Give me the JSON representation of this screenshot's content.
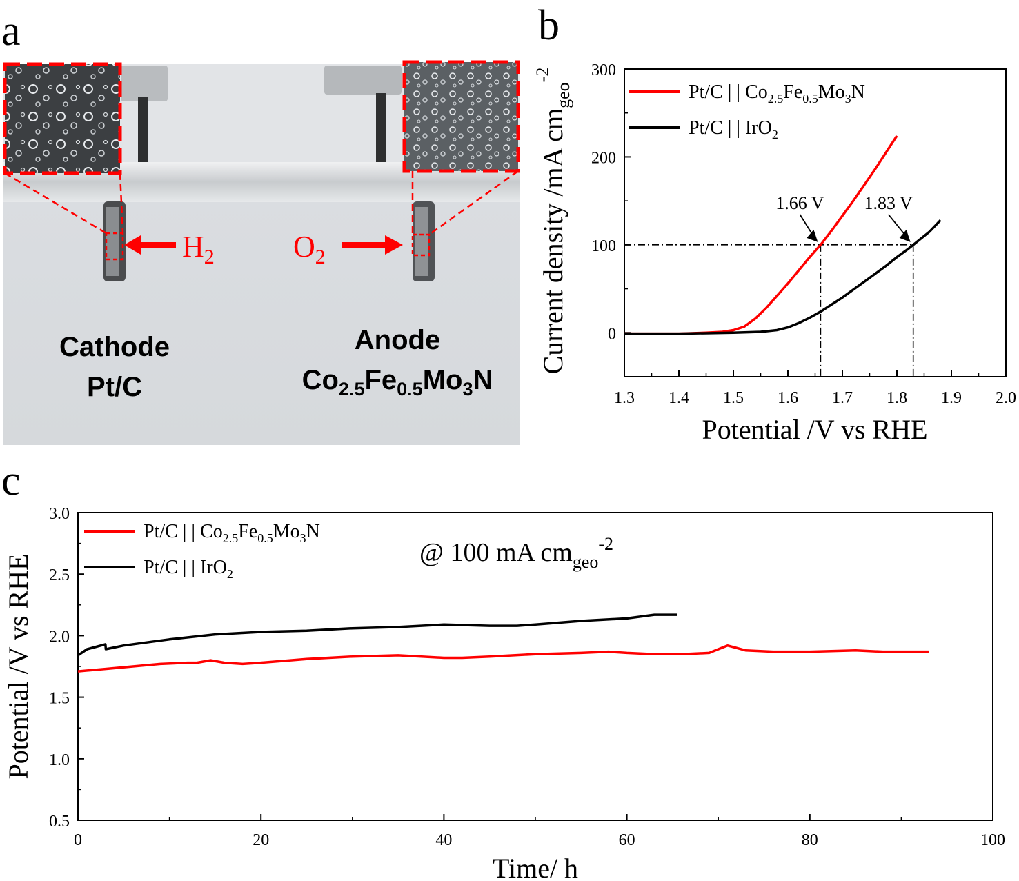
{
  "panels": {
    "a": "a",
    "b": "b",
    "c": "c"
  },
  "photo": {
    "h2_label": "H",
    "h2_sub": "2",
    "o2_label": "O",
    "o2_sub": "2",
    "cathode_title": "Cathode",
    "cathode_material": "Pt/C",
    "anode_title": "Anode",
    "anode_material": {
      "co": "Co",
      "co_sub": "2.5",
      "fe": "Fe",
      "fe_sub": "0.5",
      "mo": "Mo",
      "mo_sub": "3",
      "n": "N"
    },
    "colors": {
      "label": "#ff0000",
      "frame": "#ff0000"
    }
  },
  "chart_data": [
    {
      "id": "b",
      "type": "line",
      "xlabel": "Potential /V vs RHE",
      "ylabel": {
        "main": "Current density /mA cm",
        "sub": "geo",
        "sup": "-2"
      },
      "xlim": [
        1.3,
        2.0
      ],
      "ylim": [
        -50,
        300
      ],
      "xticks": [
        "1.3",
        "1.4",
        "1.5",
        "1.6",
        "1.7",
        "1.8",
        "1.9",
        "2.0"
      ],
      "yticks": [
        "0",
        "100",
        "200",
        "300"
      ],
      "legend": "top-left",
      "series": [
        {
          "name": "Pt/C||Co2.5Fe0.5Mo3N",
          "label": {
            "pre": "Pt/C | | Co",
            "s1": "2.5",
            "m1": "Fe",
            "s2": "0.5",
            "m2": "Mo",
            "s3": "3",
            "post": "N"
          },
          "color": "#ff0000",
          "x": [
            1.3,
            1.4,
            1.45,
            1.48,
            1.5,
            1.52,
            1.54,
            1.56,
            1.58,
            1.6,
            1.62,
            1.64,
            1.66,
            1.68,
            1.7,
            1.72,
            1.74,
            1.76,
            1.78,
            1.8
          ],
          "y": [
            -1,
            -1,
            0,
            1,
            3,
            7,
            16,
            28,
            42,
            56,
            71,
            86,
            100,
            116,
            133,
            150,
            168,
            186,
            205,
            224
          ]
        },
        {
          "name": "Pt/C||IrO2",
          "label": {
            "pre": "Pt/C | | IrO",
            "s1": "2"
          },
          "color": "#000000",
          "x": [
            1.3,
            1.4,
            1.5,
            1.55,
            1.58,
            1.6,
            1.62,
            1.64,
            1.66,
            1.68,
            1.7,
            1.72,
            1.74,
            1.76,
            1.78,
            1.8,
            1.82,
            1.83,
            1.86,
            1.88
          ],
          "y": [
            -1,
            -1,
            0,
            1,
            3,
            6,
            11,
            17,
            24,
            32,
            40,
            49,
            58,
            67,
            76,
            86,
            95,
            100,
            115,
            128
          ]
        }
      ],
      "annotations": [
        {
          "text": "1.66 V",
          "x": 1.66,
          "y": 100
        },
        {
          "text": "1.83 V",
          "x": 1.83,
          "y": 100
        }
      ],
      "reference_y": 100
    },
    {
      "id": "c",
      "type": "line",
      "xlabel": "Time/ h",
      "ylabel": "Potential /V vs RHE",
      "xlim": [
        0,
        100
      ],
      "ylim": [
        0.5,
        3.0
      ],
      "xticks": [
        "0",
        "20",
        "40",
        "60",
        "80",
        "100"
      ],
      "yticks": [
        "0.5",
        "1.0",
        "1.5",
        "2.0",
        "2.5",
        "3.0"
      ],
      "legend": "top-left",
      "annotation": {
        "pre": "@ 100 mA cm",
        "sub": "geo",
        "sup": "-2"
      },
      "series": [
        {
          "name": "Pt/C||Co2.5Fe0.5Mo3N",
          "label": {
            "pre": "Pt/C | | Co",
            "s1": "2.5",
            "m1": "Fe",
            "s2": "0.5",
            "m2": "Mo",
            "s3": "3",
            "post": "N"
          },
          "color": "#ff0000",
          "x": [
            0,
            3,
            6,
            9,
            12,
            13,
            14.5,
            16,
            18,
            20,
            25,
            30,
            35,
            40,
            42,
            45,
            50,
            55,
            58,
            60,
            63,
            66,
            69,
            70,
            71,
            72,
            73,
            76,
            80,
            85,
            88,
            90,
            93
          ],
          "y": [
            1.71,
            1.73,
            1.75,
            1.77,
            1.78,
            1.78,
            1.8,
            1.78,
            1.77,
            1.78,
            1.81,
            1.83,
            1.84,
            1.82,
            1.82,
            1.83,
            1.85,
            1.86,
            1.87,
            1.86,
            1.85,
            1.85,
            1.86,
            1.89,
            1.92,
            1.9,
            1.88,
            1.87,
            1.87,
            1.88,
            1.87,
            1.87,
            1.87
          ]
        },
        {
          "name": "Pt/C||IrO2",
          "label": {
            "pre": "Pt/C | | IrO",
            "s1": "2"
          },
          "color": "#000000",
          "x": [
            0,
            1,
            2,
            3,
            3.05,
            5,
            8,
            10,
            15,
            20,
            25,
            30,
            35,
            40,
            45,
            48,
            50,
            55,
            60,
            62,
            63,
            65.5
          ],
          "y": [
            1.84,
            1.89,
            1.91,
            1.93,
            1.89,
            1.92,
            1.95,
            1.97,
            2.01,
            2.03,
            2.04,
            2.06,
            2.07,
            2.09,
            2.08,
            2.08,
            2.09,
            2.12,
            2.14,
            2.16,
            2.17,
            2.17
          ]
        }
      ]
    }
  ]
}
